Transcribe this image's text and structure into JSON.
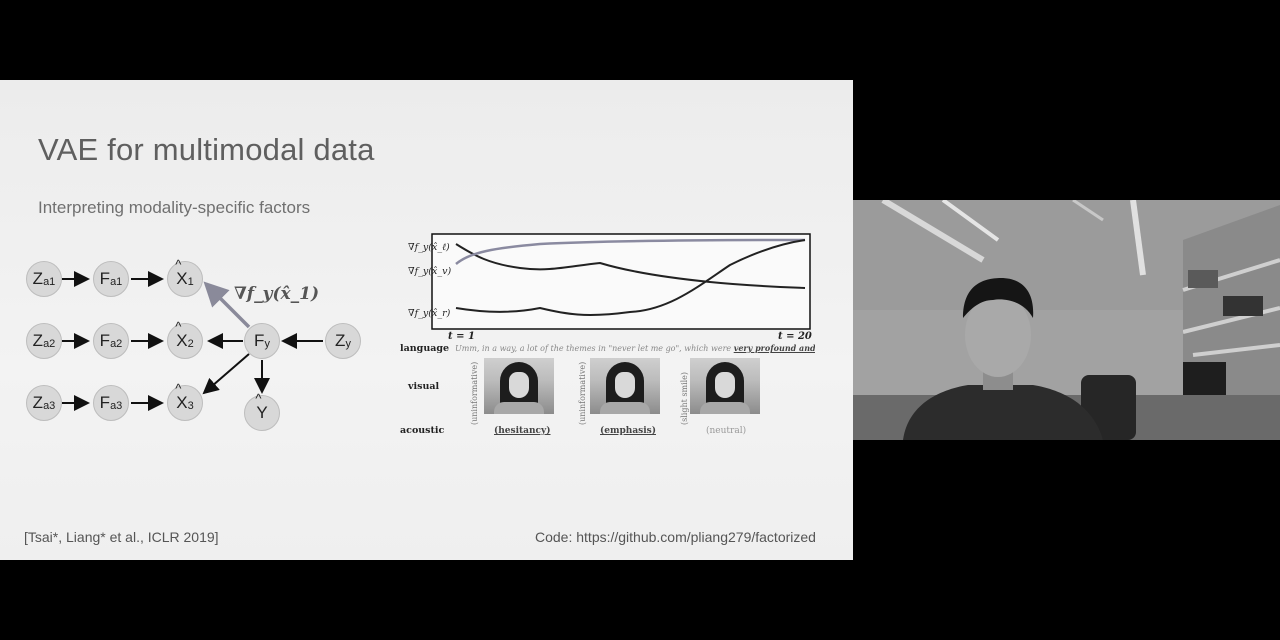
{
  "slide": {
    "title": "VAE for multimodal data",
    "subtitle": "Interpreting modality-specific factors",
    "citation": "[Tsai*, Liang* et al., ICLR 2019]",
    "code": "Code: https://github.com/pliang279/factorized"
  },
  "graph": {
    "nodes": {
      "za1": {
        "base": "Z",
        "sub": "a1"
      },
      "fa1": {
        "base": "F",
        "sub": "a1"
      },
      "x1": {
        "base": "X",
        "sub": "1"
      },
      "za2": {
        "base": "Z",
        "sub": "a2"
      },
      "fa2": {
        "base": "F",
        "sub": "a2"
      },
      "x2": {
        "base": "X",
        "sub": "2"
      },
      "fy": {
        "base": "F",
        "sub": "y"
      },
      "zy": {
        "base": "Z",
        "sub": "y"
      },
      "za3": {
        "base": "Z",
        "sub": "a3"
      },
      "fa3": {
        "base": "F",
        "sub": "a3"
      },
      "x3": {
        "base": "X",
        "sub": "3"
      },
      "y": {
        "base": "Y"
      }
    },
    "hat": "^",
    "gradient_label": "∇f_y(x̂_1)"
  },
  "figure": {
    "ylabels": [
      "∇f_y(x̂_ℓ)",
      "∇f_y(x̂_v)",
      "∇f_y(x̂_r)"
    ],
    "t_start": "t = 1",
    "t_end": "t = 20",
    "row_labels": {
      "language": "language",
      "visual": "visual",
      "acoustic": "acoustic"
    },
    "language_text_plain": "Umm, in a way, a lot of the themes in \"never let me go\", which were ",
    "language_text_emph": "very profound and deep.",
    "frames": [
      {
        "vertical_label": "(uninformative)",
        "acoustic_label": "(hesitancy)"
      },
      {
        "vertical_label": "(uninformative)",
        "acoustic_label": "(emphasis)"
      },
      {
        "vertical_label": "(slight smile)",
        "acoustic_label": "(neutral)"
      }
    ]
  },
  "colors": {
    "slide_bg": "#efefef",
    "node_fill": "#d8d8d8",
    "arrow": "#111111",
    "gradient_arrow": "#8a8a9a",
    "title_text": "#5f5f5f"
  }
}
